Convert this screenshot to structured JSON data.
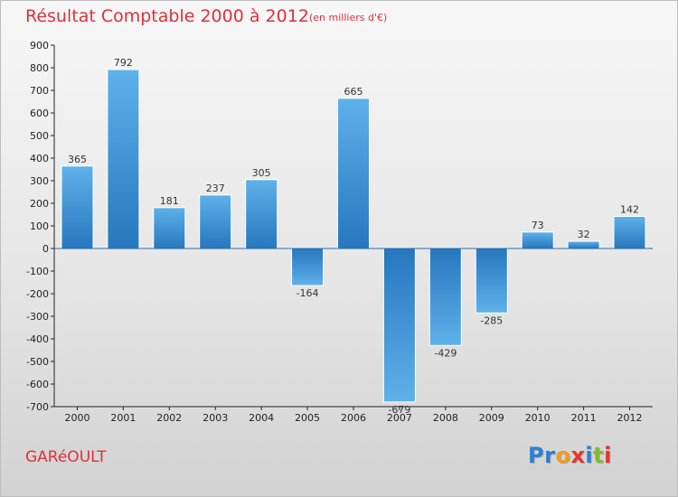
{
  "header": {
    "title": "Résultat Comptable 2000 à 2012",
    "subtitle": "(en milliers d'€)"
  },
  "footer": {
    "commune": "GARéOULT"
  },
  "logo": {
    "letters": [
      {
        "char": "P",
        "color": "#2d7fd2"
      },
      {
        "char": "r",
        "color": "#2d7fd2"
      },
      {
        "char": "o",
        "color": "#f39a1c"
      },
      {
        "char": "x",
        "color": "#e8342b"
      },
      {
        "char": "i",
        "color": "#2d7fd2"
      },
      {
        "char": "t",
        "color": "#7cbf2c"
      },
      {
        "char": "i",
        "color": "#e8342b"
      }
    ]
  },
  "chart_data": {
    "type": "bar",
    "title": "Résultat Comptable 2000 à 2012",
    "subtitle": "(en milliers d'€)",
    "categories": [
      "2000",
      "2001",
      "2002",
      "2003",
      "2004",
      "2005",
      "2006",
      "2007",
      "2008",
      "2009",
      "2010",
      "2011",
      "2012"
    ],
    "values": [
      365,
      792,
      181,
      237,
      305,
      -164,
      665,
      -679,
      -429,
      -285,
      73,
      32,
      142
    ],
    "ylim": [
      -700,
      900
    ],
    "yticks": [
      900,
      800,
      700,
      600,
      500,
      400,
      300,
      200,
      100,
      0,
      -100,
      -200,
      -300,
      -400,
      -500,
      -600,
      -700
    ],
    "grid": false,
    "colors": {
      "bar_light": "#5fb1ea",
      "bar_dark": "#2677be",
      "axis": "#222222"
    }
  }
}
